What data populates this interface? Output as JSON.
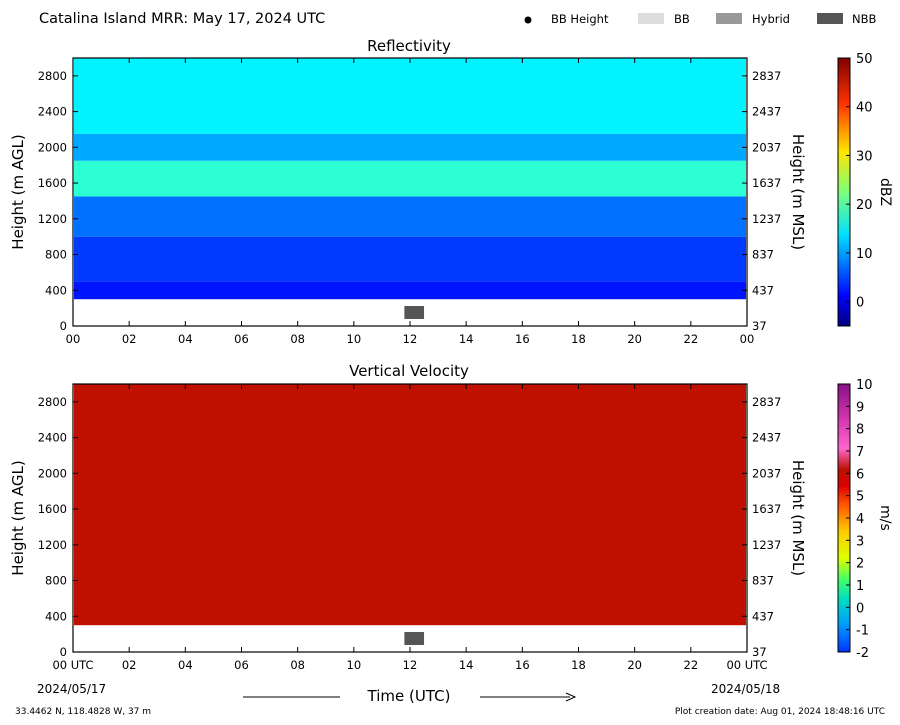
{
  "header": {
    "title": "Catalina Island MRR:  May 17, 2024 UTC",
    "legend": [
      {
        "label": "BB Height",
        "kind": "dot",
        "color": "#000000"
      },
      {
        "label": "BB",
        "kind": "box",
        "color": "#dddddd"
      },
      {
        "label": "Hybrid",
        "kind": "box",
        "color": "#999999"
      },
      {
        "label": "NBB",
        "kind": "box",
        "color": "#555555"
      }
    ]
  },
  "footer": {
    "location": "33.4462 N, 118.4828 W, 37 m",
    "creation": "Plot creation date: Aug 01, 2024 18:48:16 UTC",
    "xlabel": "Time (UTC)",
    "start_date": "2024/05/17",
    "end_date": "2024/05/18"
  },
  "chart_data": [
    {
      "type": "heatmap",
      "title": "Reflectivity",
      "ylabel": "Height (m AGL)",
      "ylabel_right": "Height (m MSL)",
      "x_ticks": [
        "00",
        "02",
        "04",
        "06",
        "08",
        "10",
        "12",
        "14",
        "16",
        "18",
        "20",
        "22",
        "00"
      ],
      "y_ticks": [
        0,
        400,
        800,
        1200,
        1600,
        2000,
        2400,
        2800
      ],
      "y_ticks_right": [
        "37",
        "437",
        "837",
        "1237",
        "1637",
        "2037",
        "2437",
        "2837"
      ],
      "ylim": [
        0,
        3000
      ],
      "xlim": [
        0,
        24
      ],
      "colorbar": {
        "label": "dBZ",
        "min": -5,
        "max": 50,
        "ticks": [
          0,
          10,
          20,
          30,
          40,
          50
        ]
      },
      "data_bottom_m": 300,
      "data_top_m": 3000,
      "layers": [
        {
          "height_range": [
            300,
            500
          ],
          "dBZ": 3
        },
        {
          "height_range": [
            500,
            1000
          ],
          "dBZ": 5
        },
        {
          "height_range": [
            1000,
            1450
          ],
          "dBZ": 8
        },
        {
          "height_range": [
            1450,
            1850
          ],
          "dBZ": 18
        },
        {
          "height_range": [
            1850,
            2150
          ],
          "dBZ": 11
        },
        {
          "height_range": [
            2150,
            3000
          ],
          "dBZ": 15
        }
      ],
      "bb_type_markers": [
        {
          "time_range": [
            11.8,
            12.5
          ],
          "type": "NBB"
        }
      ]
    },
    {
      "type": "heatmap",
      "title": "Vertical Velocity",
      "ylabel": "Height (m AGL)",
      "ylabel_right": "Height (m MSL)",
      "x_ticks": [
        "00 UTC",
        "02",
        "04",
        "06",
        "08",
        "10",
        "12",
        "14",
        "16",
        "18",
        "20",
        "22",
        "00 UTC"
      ],
      "y_ticks": [
        0,
        400,
        800,
        1200,
        1600,
        2000,
        2400,
        2800
      ],
      "y_ticks_right": [
        "37",
        "437",
        "837",
        "1237",
        "1637",
        "2037",
        "2437",
        "2837"
      ],
      "ylim": [
        0,
        3000
      ],
      "xlim": [
        0,
        24
      ],
      "colorbar": {
        "label": "m/s",
        "min": -2,
        "max": 10,
        "ticks": [
          -2,
          -1,
          0,
          1,
          2,
          3,
          4,
          5,
          6,
          7,
          8,
          9,
          10
        ]
      },
      "data_bottom_m": 300,
      "data_top_m": 3000,
      "dominant_value": 6,
      "bb_type_markers": [
        {
          "time_range": [
            11.8,
            12.5
          ],
          "type": "NBB"
        }
      ]
    }
  ]
}
